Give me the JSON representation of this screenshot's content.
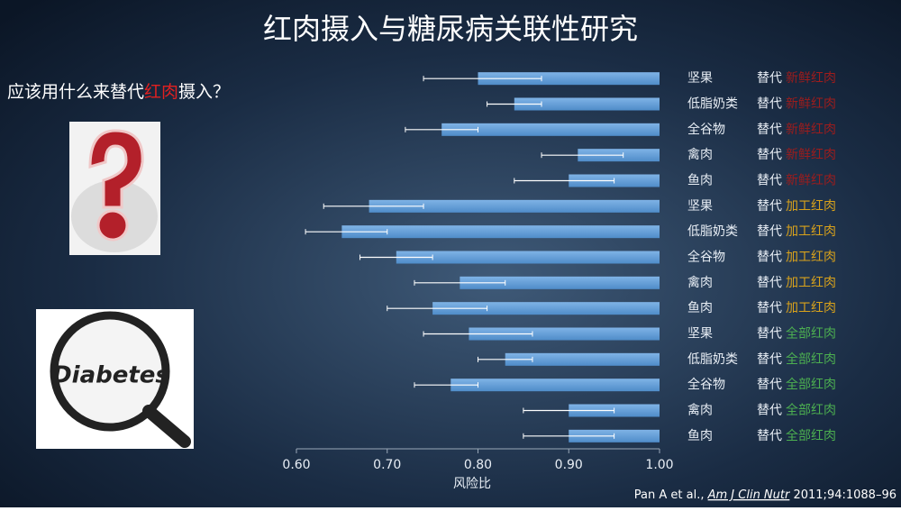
{
  "page": {
    "title": "红肉摄入与糖尿病关联性研究",
    "question": [
      "应该用什么来替代",
      "红肉",
      "摄入？"
    ],
    "image_text": "Diabetes",
    "citation": {
      "authors": "Pan A et al., ",
      "journal": "Am J Clin Nutr",
      "details": " 2011;94:1088–96"
    }
  },
  "chart_data": {
    "type": "hbar_errorbar",
    "xlabel": "风险比",
    "categories": [
      "坚果",
      "低脂奶类",
      "全谷物",
      "禽肉",
      "鱼肉",
      "坚果",
      "低脂奶类",
      "全谷物",
      "禽肉",
      "鱼肉",
      "坚果",
      "低脂奶类",
      "全谷物",
      "禽肉",
      "鱼肉"
    ],
    "replace_word": "替代",
    "substitutes": [
      "新鲜红肉",
      "新鲜红肉",
      "新鲜红肉",
      "新鲜红肉",
      "新鲜红肉",
      "加工红肉",
      "加工红肉",
      "加工红肉",
      "加工红肉",
      "加工红肉",
      "全部红肉",
      "全部红肉",
      "全部红肉",
      "全部红肉",
      "全部红肉"
    ],
    "substitute_colors": {
      "新鲜红肉": "#9e1c1c",
      "加工红肉": "#d9a21b",
      "全部红肉": "#4caf50"
    },
    "values": [
      0.8,
      0.84,
      0.76,
      0.91,
      0.9,
      0.68,
      0.65,
      0.71,
      0.78,
      0.75,
      0.79,
      0.83,
      0.77,
      0.9,
      0.9
    ],
    "ci_low": [
      0.74,
      0.81,
      0.72,
      0.87,
      0.84,
      0.63,
      0.61,
      0.67,
      0.73,
      0.7,
      0.74,
      0.8,
      0.73,
      0.85,
      0.85
    ],
    "ci_high": [
      0.87,
      0.87,
      0.8,
      0.96,
      0.95,
      0.74,
      0.7,
      0.75,
      0.83,
      0.81,
      0.86,
      0.86,
      0.8,
      0.95,
      0.95
    ],
    "color": "#5b9bd5",
    "xlim": [
      0.6,
      1.0
    ],
    "xticks": [
      {
        "value": 0.6,
        "label": "0.60"
      },
      {
        "value": 0.7,
        "label": "0.70"
      },
      {
        "value": 0.8,
        "label": "0.80"
      },
      {
        "value": 0.9,
        "label": "0.90"
      },
      {
        "value": 1.0,
        "label": "1.00"
      }
    ]
  }
}
